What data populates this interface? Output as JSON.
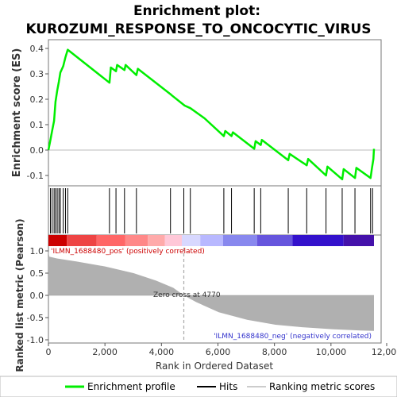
{
  "title_line1": "Enrichment plot:",
  "title_line2": "KUROZUMI_RESPONSE_TO_ONCOCYTIC_VIRUS",
  "colors": {
    "enrichment_line": "#00ee00",
    "hits": "#000000",
    "metric_fill": "#b0b0b0",
    "pos_label": "#cc0000",
    "neg_label": "#3333cc",
    "zero_cross_line": "#aaaaaa"
  },
  "chart_data": [
    {
      "type": "line",
      "name": "enrichment-profile",
      "ylabel": "Enrichment score (ES)",
      "xlim": [
        0,
        12000
      ],
      "ylim": [
        -0.14,
        0.42
      ],
      "yticks": [
        0.4,
        0.3,
        0.2,
        0.1,
        0.0,
        -0.1
      ],
      "ytick_labels": [
        "0.4",
        "0.3",
        "0.2",
        "0.1",
        "0.0",
        "-0.1"
      ],
      "grid": false,
      "series": [
        {
          "name": "Enrichment profile",
          "x": [
            0,
            70,
            130,
            200,
            250,
            310,
            370,
            420,
            520,
            600,
            680,
            2150,
            2200,
            2380,
            2420,
            2680,
            2720,
            3100,
            3150,
            4300,
            4350,
            4800,
            5000,
            5500,
            6180,
            6230,
            6450,
            6500,
            7250,
            7300,
            7480,
            7520,
            8450,
            8500,
            9100,
            9150,
            9780,
            9830,
            10350,
            10400,
            10800,
            10850,
            11350,
            11400,
            11450,
            11470
          ],
          "y": [
            0.0,
            0.04,
            0.075,
            0.115,
            0.19,
            0.235,
            0.27,
            0.305,
            0.33,
            0.365,
            0.395,
            0.265,
            0.325,
            0.31,
            0.335,
            0.315,
            0.335,
            0.295,
            0.32,
            0.22,
            0.215,
            0.175,
            0.165,
            0.125,
            0.055,
            0.075,
            0.055,
            0.07,
            0.005,
            0.035,
            0.02,
            0.04,
            -0.04,
            -0.015,
            -0.06,
            -0.035,
            -0.1,
            -0.065,
            -0.115,
            -0.075,
            -0.11,
            -0.07,
            -0.11,
            -0.07,
            -0.035,
            0.005
          ]
        }
      ]
    },
    {
      "type": "scatter",
      "name": "hits",
      "xlim": [
        0,
        12000
      ],
      "x": [
        70,
        130,
        200,
        250,
        310,
        370,
        420,
        520,
        600,
        680,
        2150,
        2380,
        2680,
        3100,
        4300,
        4770,
        5000,
        6180,
        6450,
        7250,
        7480,
        8450,
        9100,
        9780,
        10350,
        10800,
        11350,
        11420
      ]
    },
    {
      "type": "heatmap",
      "name": "ranking-color-bar",
      "xlim": [
        0,
        12000
      ],
      "segments": [
        {
          "x_end": 650,
          "color": "#cc0000"
        },
        {
          "x_end": 1700,
          "color": "#ee4444"
        },
        {
          "x_end": 2700,
          "color": "#ff6666"
        },
        {
          "x_end": 3500,
          "color": "#ff8888"
        },
        {
          "x_end": 4100,
          "color": "#ffaaaa"
        },
        {
          "x_end": 4700,
          "color": "#ffc8d8"
        },
        {
          "x_end": 5350,
          "color": "#d8d8ff"
        },
        {
          "x_end": 6150,
          "color": "#b8b8ff"
        },
        {
          "x_end": 7350,
          "color": "#8888ee"
        },
        {
          "x_end": 8600,
          "color": "#6655dd"
        },
        {
          "x_end": 10400,
          "color": "#3311cc"
        },
        {
          "x_end": 11470,
          "color": "#4411aa"
        }
      ]
    },
    {
      "type": "area",
      "name": "ranked-list-metric",
      "xlabel": "Rank in Ordered Dataset",
      "ylabel": "Ranked list metric (Pearson)",
      "xlim": [
        0,
        12000
      ],
      "ylim": [
        -1.05,
        1.12
      ],
      "xticks": [
        0,
        2000,
        4000,
        6000,
        8000,
        10000,
        12000
      ],
      "xtick_labels": [
        "0",
        "2,000",
        "4,000",
        "6,000",
        "8,000",
        "10,000",
        "12,000"
      ],
      "yticks": [
        1.0,
        0.5,
        0.0,
        -0.5,
        -1.0
      ],
      "ytick_labels": [
        "1.0",
        "0.5",
        "0.0",
        "-0.5",
        "-1.0"
      ],
      "series": [
        {
          "name": "Ranking metric scores",
          "x": [
            0,
            30,
            300,
            1000,
            2000,
            3000,
            3800,
            4400,
            4770,
            5200,
            6000,
            7000,
            8000,
            9000,
            10000,
            11000,
            11470
          ],
          "y": [
            1.0,
            0.87,
            0.83,
            0.76,
            0.65,
            0.5,
            0.33,
            0.17,
            0.0,
            -0.15,
            -0.38,
            -0.55,
            -0.66,
            -0.72,
            -0.76,
            -0.79,
            -0.8
          ]
        }
      ],
      "annotations": {
        "zero_cross": {
          "x": 4770,
          "text": "Zero cross at 4770"
        },
        "pos": "'ILMN_1688480_pos' (positively correlated)",
        "neg": "'ILMN_1688480_neg' (negatively correlated)"
      }
    }
  ],
  "legend": {
    "placement": "bottom",
    "items": [
      {
        "label": "Enrichment profile",
        "color": "#00ee00",
        "kind": "line-thick"
      },
      {
        "label": "Hits",
        "color": "#000000",
        "kind": "line"
      },
      {
        "label": "Ranking metric scores",
        "color": "#cccccc",
        "kind": "line"
      }
    ]
  }
}
